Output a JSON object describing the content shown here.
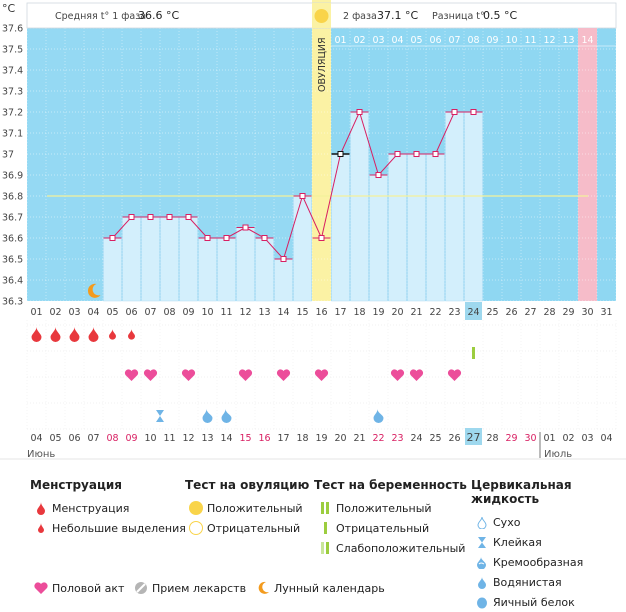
{
  "header": {
    "unit": "°C",
    "phase1_label": "Средняя t° 1 фаза",
    "phase1_value": "36.6 °C",
    "phase2_label": "2 фаза",
    "phase2_value": "37.1 °C",
    "diff_label": "Разница t°",
    "diff_value": "0.5 °C"
  },
  "ovulation_label": "ОВУЛЯЦИЯ",
  "phase2_days": [
    "01",
    "02",
    "03",
    "04",
    "05",
    "06",
    "07",
    "08",
    "09",
    "10",
    "11",
    "12",
    "13",
    "14"
  ],
  "months": {
    "first": "Июнь",
    "second": "Июль"
  },
  "colors": {
    "phase1_bg": "#ffffff",
    "phase2_bg": "#8fd7f2",
    "ovulation_col": "#fbf2a4",
    "day14_col": "#f6bcc9",
    "bar": "#d3effc",
    "line": "#d81f62",
    "coverline": "#f4f19a",
    "highlight": "#9ed8ee",
    "menstruation": "#e8383d",
    "intercourse": "#ec4d9a",
    "cervical": "#6fb4e6",
    "test_positive": "#f9d44a",
    "test_weak": "#b6d870"
  },
  "chart_data": {
    "type": "line",
    "x": [
      "01",
      "02",
      "03",
      "04",
      "05",
      "06",
      "07",
      "08",
      "09",
      "10",
      "11",
      "12",
      "13",
      "14",
      "15",
      "16",
      "17",
      "18",
      "19",
      "20",
      "21",
      "22",
      "23",
      "24",
      "25",
      "26",
      "27",
      "28",
      "29",
      "30",
      "31"
    ],
    "y": [
      null,
      null,
      null,
      null,
      36.6,
      36.7,
      36.7,
      36.7,
      36.7,
      36.6,
      36.6,
      36.65,
      36.6,
      36.5,
      36.8,
      36.6,
      37.0,
      37.2,
      36.9,
      37.0,
      37.0,
      37.0,
      37.2,
      37.2,
      null,
      null,
      null,
      null,
      null,
      null,
      null
    ],
    "ylim": [
      36.3,
      37.6
    ],
    "yticks": [
      "36.3",
      "36.4",
      "36.5",
      "36.6",
      "36.7",
      "36.8",
      "36.9",
      "37",
      "37.1",
      "37.2",
      "37.3",
      "37.4",
      "37.5",
      "37.6"
    ],
    "coverline": 36.8,
    "ovulation_day": "16",
    "highlight_day": "24",
    "highlight_date": "27",
    "dates": [
      "04",
      "05",
      "06",
      "07",
      "08",
      "09",
      "10",
      "11",
      "12",
      "13",
      "14",
      "15",
      "16",
      "17",
      "18",
      "19",
      "20",
      "21",
      "22",
      "23",
      "24",
      "25",
      "26",
      "27",
      "28",
      "29",
      "30",
      "01",
      "02",
      "03",
      "04"
    ],
    "weekend_dates_idx": [
      4,
      5,
      11,
      12,
      18,
      19,
      25,
      26
    ],
    "menstruation": [
      {
        "day": 1,
        "size": "large"
      },
      {
        "day": 2,
        "size": "large"
      },
      {
        "day": 3,
        "size": "large"
      },
      {
        "day": 4,
        "size": "large"
      },
      {
        "day": 5,
        "size": "small"
      },
      {
        "day": 6,
        "size": "small"
      }
    ],
    "pregnancy_test": [
      {
        "day": 24,
        "result": "weak"
      }
    ],
    "intercourse": [
      6,
      7,
      9,
      12,
      14,
      16,
      20,
      21,
      23
    ],
    "cervical": [
      {
        "day": 7,
        "type": "sticky"
      },
      {
        "day": 10,
        "type": "creamy"
      },
      {
        "day": 11,
        "type": "creamy"
      },
      {
        "day": 19,
        "type": "creamy"
      }
    ],
    "moon_day": 4
  },
  "legend": {
    "menstruation": {
      "title": "Менструация",
      "items": [
        "Менструация",
        "Небольшие выделения"
      ]
    },
    "ovulation_test": {
      "title": "Тест на овуляцию",
      "items": [
        "Положительный",
        "Отрицательный"
      ]
    },
    "pregnancy_test": {
      "title": "Тест на беременность",
      "items": [
        "Положительный",
        "Отрицательный",
        "Слабоположительный"
      ]
    },
    "cervical": {
      "title": "Цервикальная жидкость",
      "items": [
        "Сухо",
        "Клейкая",
        "Кремообразная",
        "Водянистая",
        "Яичный белок"
      ]
    },
    "bottom": [
      "Половой акт",
      "Прием лекарств",
      "Лунный календарь"
    ]
  }
}
